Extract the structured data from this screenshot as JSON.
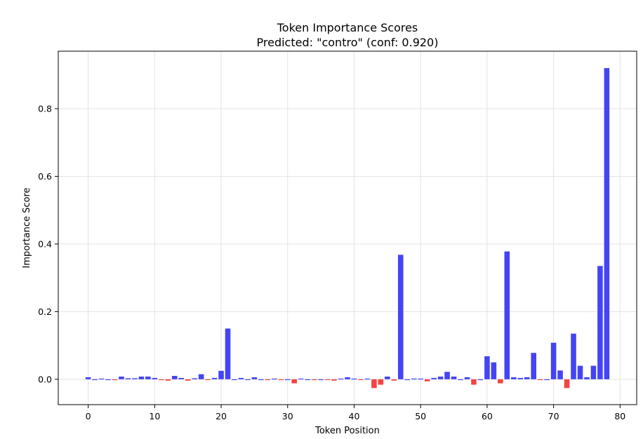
{
  "chart_data": {
    "type": "bar",
    "title": "Token Importance Scores",
    "subtitle": "Predicted: \"contro\" (conf: 0.920)",
    "xlabel": "Token Position",
    "ylabel": "Importance Score",
    "xlim": [
      -4.5,
      82.5
    ],
    "ylim": [
      -0.075,
      0.97
    ],
    "xticks": [
      0,
      10,
      20,
      30,
      40,
      50,
      60,
      70,
      80
    ],
    "yticks": [
      0.0,
      0.2,
      0.4,
      0.6,
      0.8
    ],
    "ytick_labels": [
      "0.0",
      "0.2",
      "0.4",
      "0.6",
      "0.8"
    ],
    "grid": true,
    "colors": {
      "positive": "#4444f4",
      "negative": "#f44444"
    },
    "x": [
      0,
      1,
      2,
      3,
      4,
      5,
      6,
      7,
      8,
      9,
      10,
      11,
      12,
      13,
      14,
      15,
      16,
      17,
      18,
      19,
      20,
      21,
      22,
      23,
      24,
      25,
      26,
      27,
      28,
      29,
      30,
      31,
      32,
      33,
      34,
      35,
      36,
      37,
      38,
      39,
      40,
      41,
      42,
      43,
      44,
      45,
      46,
      47,
      48,
      49,
      50,
      51,
      52,
      53,
      54,
      55,
      56,
      57,
      58,
      59,
      60,
      61,
      62,
      63,
      64,
      65,
      66,
      67,
      68,
      69,
      70,
      71,
      72,
      73,
      74,
      75,
      76,
      77,
      78
    ],
    "values": [
      0.006,
      0.0,
      0.002,
      0.0,
      -0.002,
      0.008,
      0.003,
      0.003,
      0.008,
      0.008,
      0.004,
      -0.002,
      -0.004,
      0.01,
      0.004,
      -0.004,
      0.003,
      0.015,
      -0.002,
      0.004,
      0.025,
      0.15,
      0.0,
      0.004,
      0.0,
      0.006,
      0.0,
      -0.002,
      0.002,
      -0.002,
      0.0,
      -0.012,
      0.002,
      0.0,
      -0.002,
      0.0,
      -0.002,
      -0.004,
      0.002,
      0.006,
      0.002,
      -0.002,
      0.002,
      -0.026,
      -0.016,
      0.008,
      -0.004,
      0.368,
      0.0,
      0.002,
      0.002,
      -0.006,
      0.004,
      0.008,
      0.022,
      0.008,
      0.0,
      0.006,
      -0.016,
      0.0,
      0.068,
      0.05,
      -0.012,
      0.378,
      0.006,
      0.004,
      0.006,
      0.078,
      -0.002,
      0.0,
      0.108,
      0.026,
      -0.026,
      0.135,
      0.04,
      0.006,
      0.04,
      0.335,
      0.92
    ]
  }
}
